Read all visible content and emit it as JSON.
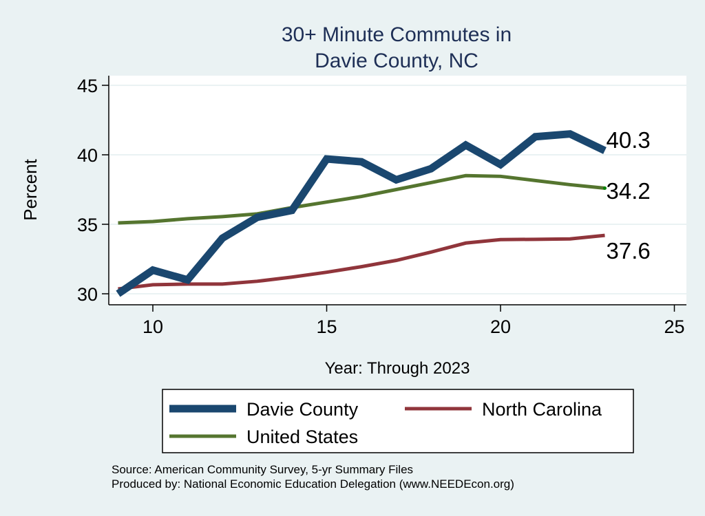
{
  "chart_data": {
    "type": "line",
    "title_lines": [
      "30+ Minute Commutes in",
      "Davie County, NC"
    ],
    "xlabel": "Year: Through 2023",
    "ylabel": "Percent",
    "xlim": [
      9,
      25
    ],
    "ylim": [
      30,
      45
    ],
    "xticks": [
      10,
      15,
      20,
      25
    ],
    "yticks": [
      30,
      35,
      40,
      45
    ],
    "grid": "horizontal",
    "legend_placement": "bottom",
    "x": [
      9,
      10,
      11,
      12,
      13,
      14,
      15,
      16,
      17,
      18,
      19,
      20,
      21,
      22,
      23
    ],
    "series": [
      {
        "name": "Davie County",
        "color": "#1a476f",
        "values": [
          30.0,
          31.7,
          31.0,
          34.0,
          35.5,
          36.0,
          39.7,
          39.5,
          38.2,
          39.0,
          40.7,
          39.3,
          41.3,
          41.5,
          40.3
        ],
        "end_label": "40.3"
      },
      {
        "name": "North Carolina",
        "color": "#90353b",
        "values": [
          30.35,
          30.65,
          30.7,
          30.7,
          30.9,
          31.2,
          31.55,
          31.95,
          32.4,
          33.0,
          33.65,
          33.9,
          33.92,
          33.95,
          34.2
        ],
        "end_label": "34.2"
      },
      {
        "name": "United States",
        "color": "#55752f",
        "values": [
          35.1,
          35.2,
          35.4,
          35.55,
          35.75,
          36.2,
          36.6,
          37.0,
          37.5,
          38.0,
          38.5,
          38.45,
          38.15,
          37.85,
          37.6
        ],
        "end_label": "37.6"
      }
    ],
    "notes": [
      "Source: American Community Survey, 5-yr Summary Files",
      "Produced by: National Economic Education Delegation (www.NEEDEcon.org)"
    ]
  }
}
